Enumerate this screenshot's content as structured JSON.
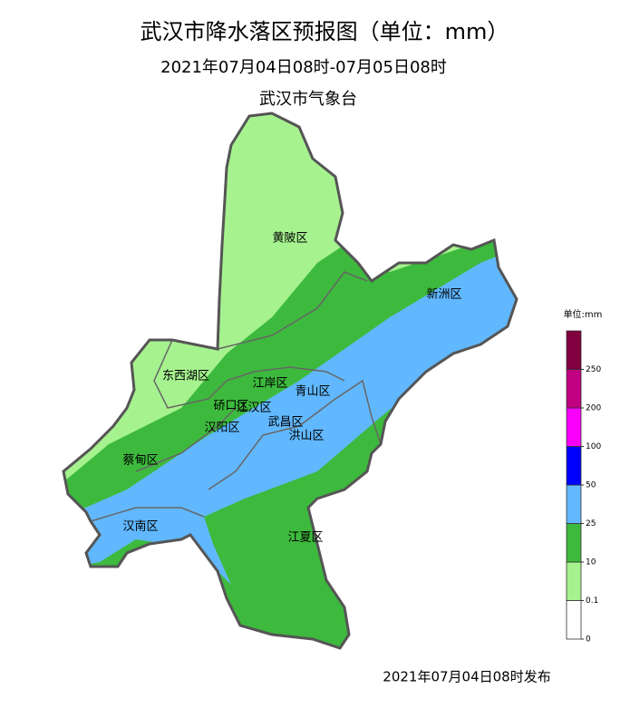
{
  "title": "武汉市降水落区预报图（单位：mm）",
  "subtitle": "2021年07月04日08时-07月05日08时",
  "organization": "武汉市气象台",
  "districts": [
    "黄陂区",
    "新洲区",
    "东西湖区",
    "江岸区",
    "青山区",
    "硚口区",
    "江汉区",
    "汉阳区",
    "武昌区",
    "洪山区",
    "蔡甸区",
    "汉南区",
    "江夏区"
  ],
  "legend": {
    "title": "单位:mm",
    "ticks": [
      0,
      0.1,
      10,
      25,
      50,
      100,
      200,
      250
    ],
    "colors": [
      "#ffffff",
      "#a6f28f",
      "#3dba3d",
      "#61b8ff",
      "#0000ff",
      "#fa00fa",
      "#c00080",
      "#800040"
    ]
  },
  "footer": "2021年07月04日08时发布"
}
